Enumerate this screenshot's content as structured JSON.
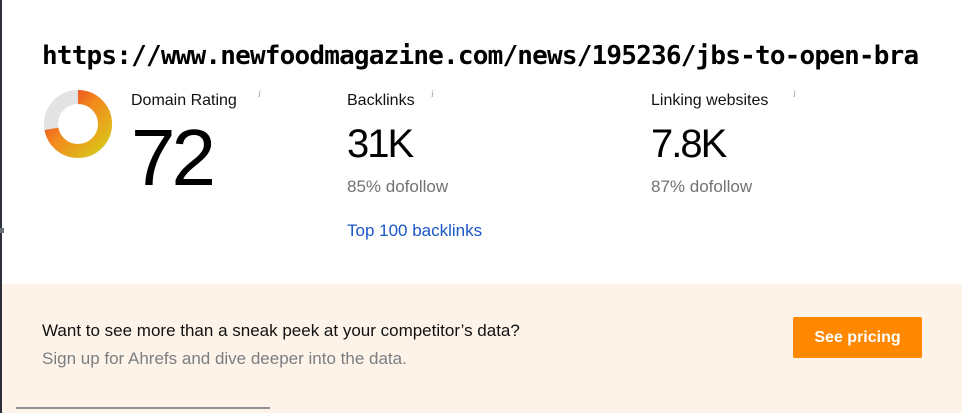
{
  "url_title": "https://www.newfoodmagazine.com/news/195236/jbs-to-open-bra",
  "info_icon": "i",
  "domain_rating": {
    "label": "Domain Rating",
    "value": "72",
    "fraction": 0.72,
    "colors": {
      "red": "#e8382b",
      "orange": "#f28a1c",
      "yellow": "#d9c71a",
      "track": "#e3e3e3"
    }
  },
  "backlinks": {
    "label": "Backlinks",
    "value": "31K",
    "dofollow": "85% dofollow",
    "link": "Top 100 backlinks"
  },
  "linking_websites": {
    "label": "Linking websites",
    "value": "7.8K",
    "dofollow": "87% dofollow"
  },
  "promo": {
    "title": "Want to see more than a sneak peek at your competitor’s data?",
    "subtitle": "Sign up for Ahrefs and dive deeper into the data.",
    "button": "See pricing",
    "button_color": "#ff8800",
    "background": "#fdf3e9"
  },
  "link_color": "#1a56c7"
}
